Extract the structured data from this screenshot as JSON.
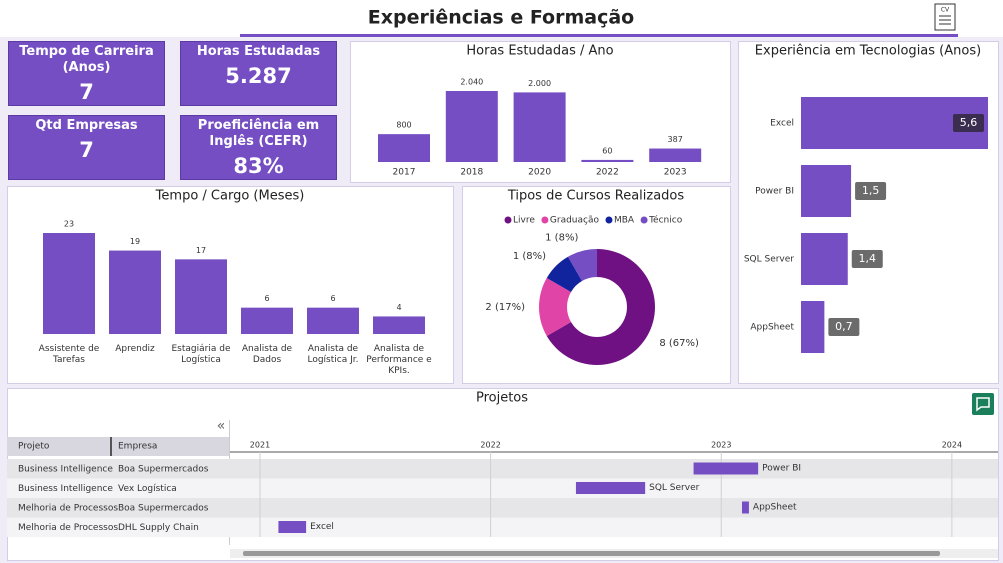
{
  "header": {
    "title": "Experiências e Formação"
  },
  "kpis": [
    {
      "label": "Tempo de Carreira (Anos)",
      "value": "7"
    },
    {
      "label": "Horas Estudadas",
      "value": "5.287"
    },
    {
      "label": "Qtd Empresas",
      "value": "7"
    },
    {
      "label": "Proeficiência em Inglês (CEFR)",
      "value": "83%"
    }
  ],
  "chart_data": [
    {
      "type": "bar",
      "title": "Horas Estudadas / Ano",
      "categories": [
        "2017",
        "2018",
        "2020",
        "2022",
        "2023"
      ],
      "values": [
        800,
        2040,
        2000,
        60,
        387
      ],
      "value_labels": [
        "800",
        "2.040",
        "2.000",
        "60",
        "387"
      ],
      "color": "#744ec2"
    },
    {
      "type": "bar",
      "title": "Tempo / Cargo (Meses)",
      "categories": [
        "Assistente de Tarefas",
        "Aprendiz",
        "Estagiária de Logística",
        "Analista de Dados",
        "Analista de Logística Jr.",
        "Analista de Performance e KPIs."
      ],
      "values": [
        23,
        19,
        17,
        6,
        6,
        4
      ],
      "color": "#744ec2"
    },
    {
      "type": "donut",
      "title": "Tipos de Cursos Realizados",
      "categories": [
        "Livre",
        "Graduação",
        "MBA",
        "Técnico"
      ],
      "values": [
        8,
        2,
        1,
        1
      ],
      "value_labels": [
        "8 (67%)",
        "2 (17%)",
        "1 (8%)",
        "1 (8%)"
      ],
      "colors": [
        "#701183",
        "#e044a7",
        "#12239e",
        "#744ec2"
      ]
    },
    {
      "type": "hbar",
      "title": "Experiência em Tecnologias (Anos)",
      "categories": [
        "Excel",
        "Power BI",
        "SQL Server",
        "AppSheet"
      ],
      "values": [
        5.6,
        1.5,
        1.4,
        0.7
      ],
      "value_labels": [
        "5,6",
        "1,5",
        "1,4",
        "0,7"
      ],
      "color": "#744ec2"
    },
    {
      "type": "gantt",
      "title": "Projetos",
      "columns": [
        "Projeto",
        "Empresa"
      ],
      "rows": [
        [
          "Business Intelligence",
          "Boa Supermercados"
        ],
        [
          "Business Intelligence",
          "Vex Logística"
        ],
        [
          "Melhoria de Processos",
          "Boa Supermercados"
        ],
        [
          "Melhoria de Processos",
          "DHL Supply Chain"
        ]
      ],
      "start": [
        2022.88,
        2022.37,
        2023.09,
        2021.08
      ],
      "end": [
        2023.16,
        2022.67,
        2023.12,
        2021.2
      ],
      "value_labels": [
        "Power BI",
        "SQL Server",
        "AppSheet",
        "Excel"
      ],
      "xlim": [
        2020.87,
        2024.2
      ],
      "xticks": [
        2021,
        2022,
        2023,
        2024
      ],
      "color": "#744ec2"
    }
  ]
}
